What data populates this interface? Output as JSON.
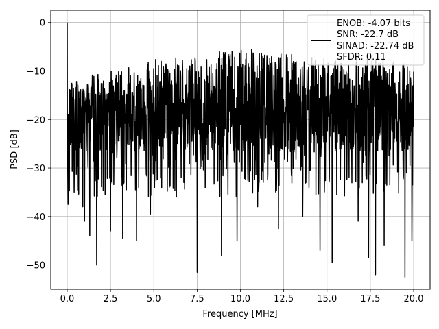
{
  "chart_data": {
    "type": "line",
    "title": "",
    "xlabel": "Frequency [MHz]",
    "ylabel": "PSD [dB]",
    "xlim": [
      -0.95,
      20.95
    ],
    "ylim": [
      -55,
      2.5
    ],
    "xticks": [
      0.0,
      2.5,
      5.0,
      7.5,
      10.0,
      12.5,
      15.0,
      17.5,
      20.0
    ],
    "xtick_labels": [
      "0.0",
      "2.5",
      "5.0",
      "7.5",
      "10.0",
      "12.5",
      "15.0",
      "17.5",
      "20.0"
    ],
    "yticks": [
      0,
      -10,
      -20,
      -30,
      -40,
      -50
    ],
    "ytick_labels": [
      "0",
      "−10",
      "−20",
      "−30",
      "−40",
      "−50"
    ],
    "grid": true,
    "legend_position": "top-right",
    "series": [
      {
        "color": "#000000",
        "legend_lines": [
          "ENOB: -4.07 bits",
          "SNR: -22.7 dB",
          "SINAD: -22.74 dB",
          "SFDR: 0.11"
        ],
        "sampling": {
          "x_start": 0.0,
          "x_end": 20.0,
          "points": 1600
        },
        "start_values": [
          0,
          -6,
          -15,
          -23
        ],
        "noise_band": {
          "mean": -19.5,
          "upper": -8,
          "lower": -36
        },
        "envelope_upper": [
          [
            0.0,
            -12
          ],
          [
            2.5,
            -10
          ],
          [
            5.0,
            -7.5
          ],
          [
            7.5,
            -7
          ],
          [
            10.0,
            -5
          ],
          [
            12.5,
            -6.5
          ],
          [
            15.0,
            -7
          ],
          [
            17.5,
            -7
          ],
          [
            20.0,
            -9
          ]
        ],
        "spikes": [
          {
            "x": 0.05,
            "y": -37.5
          },
          {
            "x": 0.4,
            "y": -35
          },
          {
            "x": 0.9,
            "y": -38
          },
          {
            "x": 1.0,
            "y": -41
          },
          {
            "x": 1.3,
            "y": -44
          },
          {
            "x": 1.7,
            "y": -50
          },
          {
            "x": 2.5,
            "y": -43
          },
          {
            "x": 3.2,
            "y": -44.5
          },
          {
            "x": 4.0,
            "y": -45
          },
          {
            "x": 4.8,
            "y": -39.5
          },
          {
            "x": 6.3,
            "y": -36
          },
          {
            "x": 7.5,
            "y": -51.5
          },
          {
            "x": 8.9,
            "y": -48
          },
          {
            "x": 9.8,
            "y": -45
          },
          {
            "x": 11.0,
            "y": -38
          },
          {
            "x": 12.2,
            "y": -42.5
          },
          {
            "x": 13.6,
            "y": -40
          },
          {
            "x": 14.6,
            "y": -47
          },
          {
            "x": 15.3,
            "y": -49.5
          },
          {
            "x": 16.8,
            "y": -41
          },
          {
            "x": 17.4,
            "y": -48.5
          },
          {
            "x": 17.8,
            "y": -52
          },
          {
            "x": 18.3,
            "y": -46
          },
          {
            "x": 19.5,
            "y": -52.5
          },
          {
            "x": 19.9,
            "y": -45
          }
        ]
      }
    ]
  }
}
